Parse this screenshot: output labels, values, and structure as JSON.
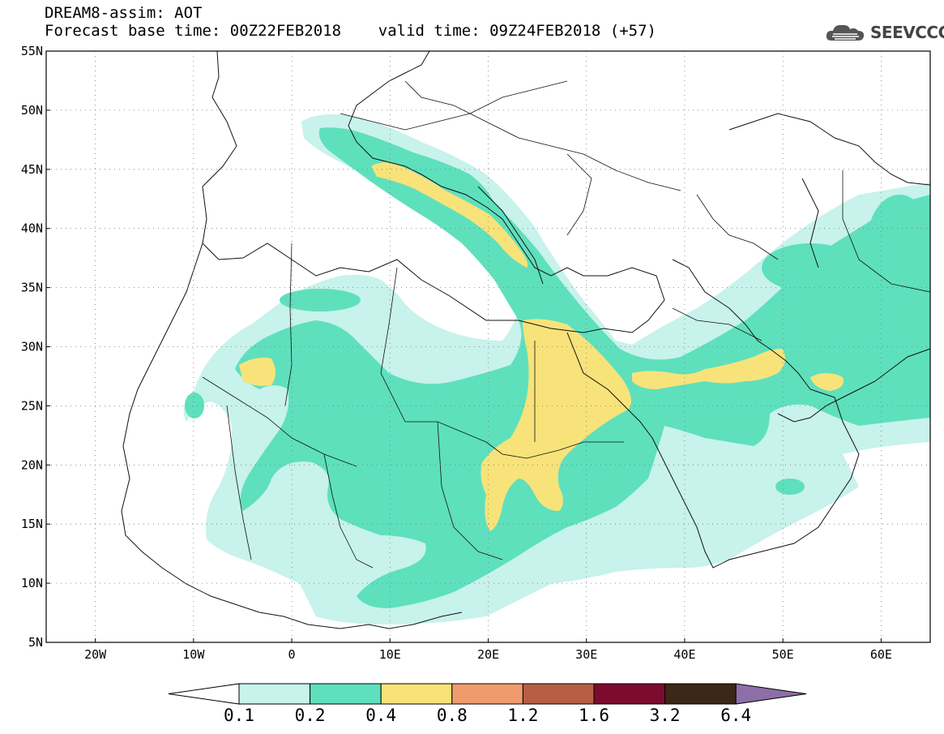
{
  "header": {
    "title_line1": "DREAM8-assim: AOT",
    "title_line2": "Forecast base time: 00Z22FEB2018    valid time: 09Z24FEB2018 (+57)"
  },
  "logo": {
    "icon": "cloud-logo-icon",
    "text": "SEEVCCC"
  },
  "map": {
    "lon_range": [
      -25,
      65
    ],
    "lat_range": [
      5,
      55
    ],
    "lat_labels": [
      "5N",
      "10N",
      "15N",
      "20N",
      "25N",
      "30N",
      "35N",
      "40N",
      "45N",
      "50N",
      "55N"
    ],
    "lon_labels": [
      "20W",
      "10W",
      "0",
      "10E",
      "20E",
      "30E",
      "40E",
      "50E",
      "60E"
    ],
    "grid": "dotted"
  },
  "colorbar": {
    "labels": [
      "0.1",
      "0.2",
      "0.4",
      "0.8",
      "1.2",
      "1.6",
      "3.2",
      "6.4"
    ],
    "colors": [
      "#ffffff",
      "#c8f2ec",
      "#5ee0bd",
      "#f7e37a",
      "#ef9b6d",
      "#b85e46",
      "#7d0b2d",
      "#3d2717",
      "#8e6ea8"
    ]
  }
}
